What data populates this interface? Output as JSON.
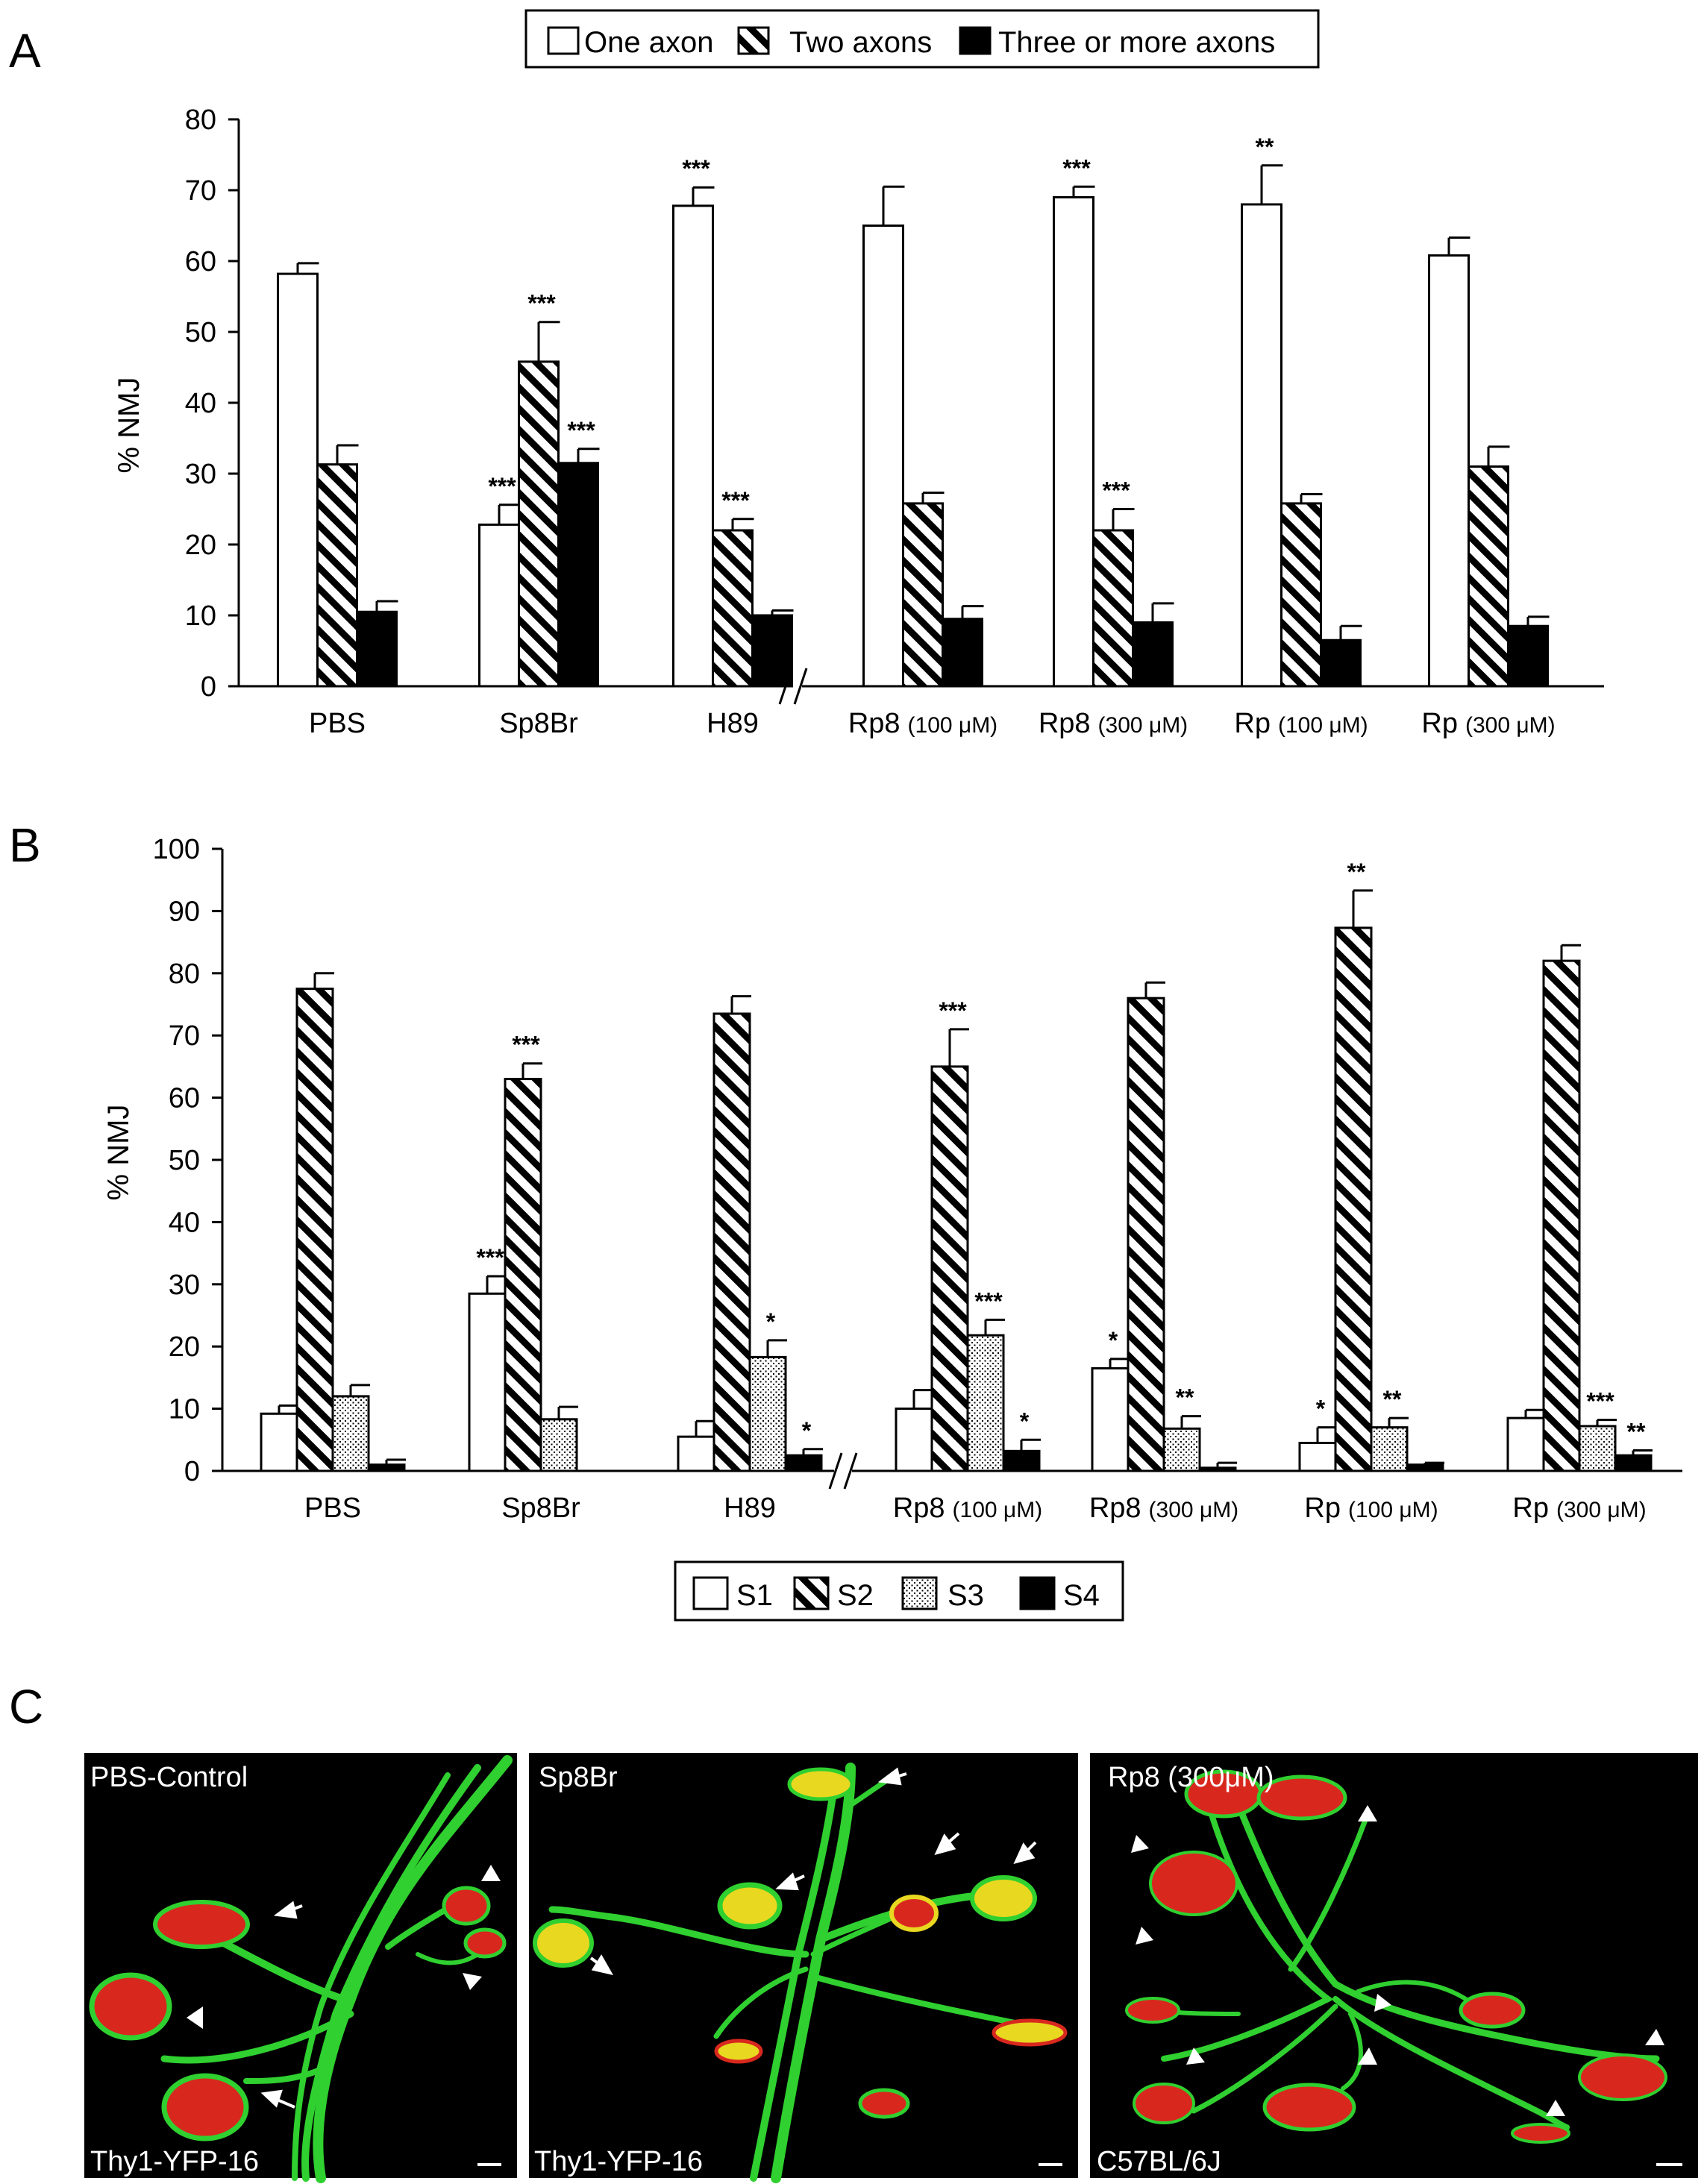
{
  "panels": {
    "a": "A",
    "b": "B",
    "c": "C"
  },
  "chart_data": [
    {
      "type": "bar",
      "panel": "A",
      "ylabel": "% NMJ",
      "ylim": [
        0,
        80
      ],
      "yticks": [
        0,
        10,
        20,
        30,
        40,
        50,
        60,
        70,
        80
      ],
      "categories": [
        {
          "main": "PBS",
          "conc": ""
        },
        {
          "main": "Sp8Br",
          "conc": ""
        },
        {
          "main": "H89",
          "conc": ""
        },
        {
          "main": "Rp8",
          "conc": "(100 μM)"
        },
        {
          "main": "Rp8",
          "conc": "(300 μM)"
        },
        {
          "main": "Rp",
          "conc": "(100 μM)"
        },
        {
          "main": "Rp",
          "conc": "(300 μM)"
        }
      ],
      "axis_break": "//",
      "legend": {
        "position": "top",
        "entries": [
          "One axon",
          "Two axons",
          "Three or more axons"
        ]
      },
      "series": [
        {
          "name": "One axon",
          "fill": "white",
          "values": [
            58.2,
            22.8,
            67.8,
            65.0,
            69.0,
            68.0,
            60.8
          ],
          "errors": [
            1.5,
            2.8,
            2.6,
            5.5,
            1.5,
            5.5,
            2.5
          ],
          "sig": [
            "",
            "***",
            "***",
            "",
            "***",
            "**",
            ""
          ]
        },
        {
          "name": "Two axons",
          "fill": "hatch",
          "values": [
            31.3,
            45.8,
            22.0,
            25.8,
            22.0,
            25.8,
            31.0
          ],
          "errors": [
            2.7,
            5.6,
            1.6,
            1.5,
            3.0,
            1.3,
            2.8
          ],
          "sig": [
            "",
            "***",
            "***",
            "",
            "***",
            "",
            ""
          ]
        },
        {
          "name": "Three or more axons",
          "fill": "black",
          "values": [
            10.5,
            31.5,
            10.0,
            9.5,
            9.0,
            6.5,
            8.5
          ],
          "errors": [
            1.5,
            2.0,
            0.7,
            1.8,
            2.7,
            2.0,
            1.3
          ],
          "sig": [
            "",
            "***",
            "",
            "",
            "",
            "",
            ""
          ]
        }
      ]
    },
    {
      "type": "bar",
      "panel": "B",
      "ylabel": "% NMJ",
      "ylim": [
        0,
        100
      ],
      "yticks": [
        0,
        10,
        20,
        30,
        40,
        50,
        60,
        70,
        80,
        90,
        100
      ],
      "categories": [
        {
          "main": "PBS",
          "conc": ""
        },
        {
          "main": "Sp8Br",
          "conc": ""
        },
        {
          "main": "H89",
          "conc": ""
        },
        {
          "main": "Rp8",
          "conc": "(100 μM)"
        },
        {
          "main": "Rp8",
          "conc": "(300 μM)"
        },
        {
          "main": "Rp",
          "conc": "(100 μM)"
        },
        {
          "main": "Rp",
          "conc": "(300 μM)"
        }
      ],
      "axis_break": "//",
      "legend": {
        "position": "bottom",
        "entries": [
          "S1",
          "S2",
          "S3",
          "S4"
        ]
      },
      "series": [
        {
          "name": "S1",
          "fill": "white",
          "values": [
            9.2,
            28.5,
            5.5,
            10.0,
            16.5,
            4.5,
            8.5
          ],
          "errors": [
            1.3,
            2.8,
            2.5,
            3.0,
            1.5,
            2.5,
            1.3
          ],
          "sig": [
            "",
            "***",
            "",
            "",
            "*",
            "*",
            ""
          ]
        },
        {
          "name": "S2",
          "fill": "hatch",
          "values": [
            77.5,
            63.0,
            73.5,
            65.0,
            76.0,
            87.3,
            82.0
          ],
          "errors": [
            2.5,
            2.5,
            2.8,
            6.0,
            2.5,
            6.0,
            2.5
          ],
          "sig": [
            "",
            "***",
            "",
            "***",
            "",
            "**",
            ""
          ]
        },
        {
          "name": "S3",
          "fill": "dots",
          "values": [
            12.0,
            8.3,
            18.3,
            21.8,
            6.8,
            7.0,
            7.2
          ],
          "errors": [
            1.8,
            2.0,
            2.7,
            2.5,
            2.0,
            1.5,
            1.0
          ],
          "sig": [
            "",
            "",
            "*",
            "***",
            "**",
            "**",
            "***"
          ]
        },
        {
          "name": "S4",
          "fill": "black",
          "values": [
            1.0,
            0,
            2.5,
            3.2,
            0.5,
            1.0,
            2.5
          ],
          "errors": [
            0.8,
            0,
            1.0,
            1.8,
            0.8,
            0.3,
            0.8
          ],
          "sig": [
            "",
            "",
            "*",
            "*",
            "",
            "",
            "**"
          ]
        }
      ]
    }
  ],
  "photos": [
    {
      "top_label": "PBS-Control",
      "bottom_label": "Thy1-YFP-16"
    },
    {
      "top_label": "Sp8Br",
      "bottom_label": "Thy1-YFP-16"
    },
    {
      "top_label": "Rp8 (300μM)",
      "bottom_label": "C57BL/6J"
    }
  ],
  "colors": {
    "ink": "#000000",
    "photo_background": "#000000",
    "axon_green": "#2fd02f",
    "endplate_red": "#d8281e",
    "overlap_yellow": "#e8d820",
    "marker_white": "#ffffff"
  }
}
